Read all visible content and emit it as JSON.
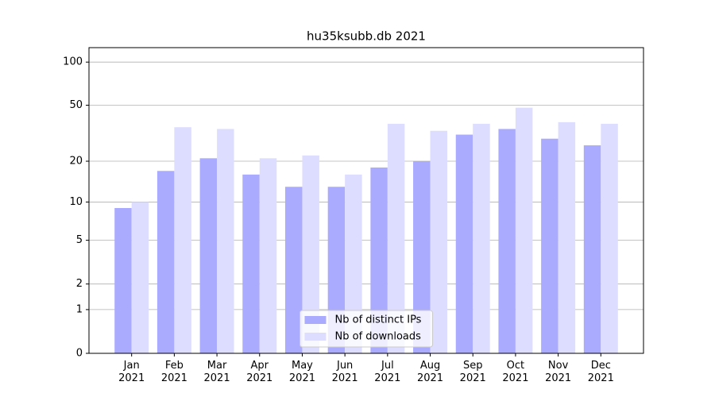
{
  "chart_data": {
    "type": "bar",
    "title": "hu35ksubb.db 2021",
    "categories": [
      "Jan\n2021",
      "Feb\n2021",
      "Mar\n2021",
      "Apr\n2021",
      "May\n2021",
      "Jun\n2021",
      "Jul\n2021",
      "Aug\n2021",
      "Sep\n2021",
      "Oct\n2021",
      "Nov\n2021",
      "Dec\n2021"
    ],
    "series": [
      {
        "name": "Nb of distinct IPs",
        "color": "#aaaaff",
        "values": [
          9,
          17,
          21,
          16,
          13,
          13,
          18,
          20,
          31,
          34,
          29,
          26
        ]
      },
      {
        "name": "Nb of downloads",
        "color": "#ddddff",
        "values": [
          10,
          35,
          34,
          21,
          22,
          16,
          37,
          33,
          37,
          48,
          38,
          37
        ]
      }
    ],
    "yscale": "log1p",
    "ylim": [
      0,
      126
    ],
    "yticks": [
      0,
      1,
      2,
      5,
      10,
      20,
      50,
      100
    ],
    "grid": true,
    "legend": "lower center"
  }
}
